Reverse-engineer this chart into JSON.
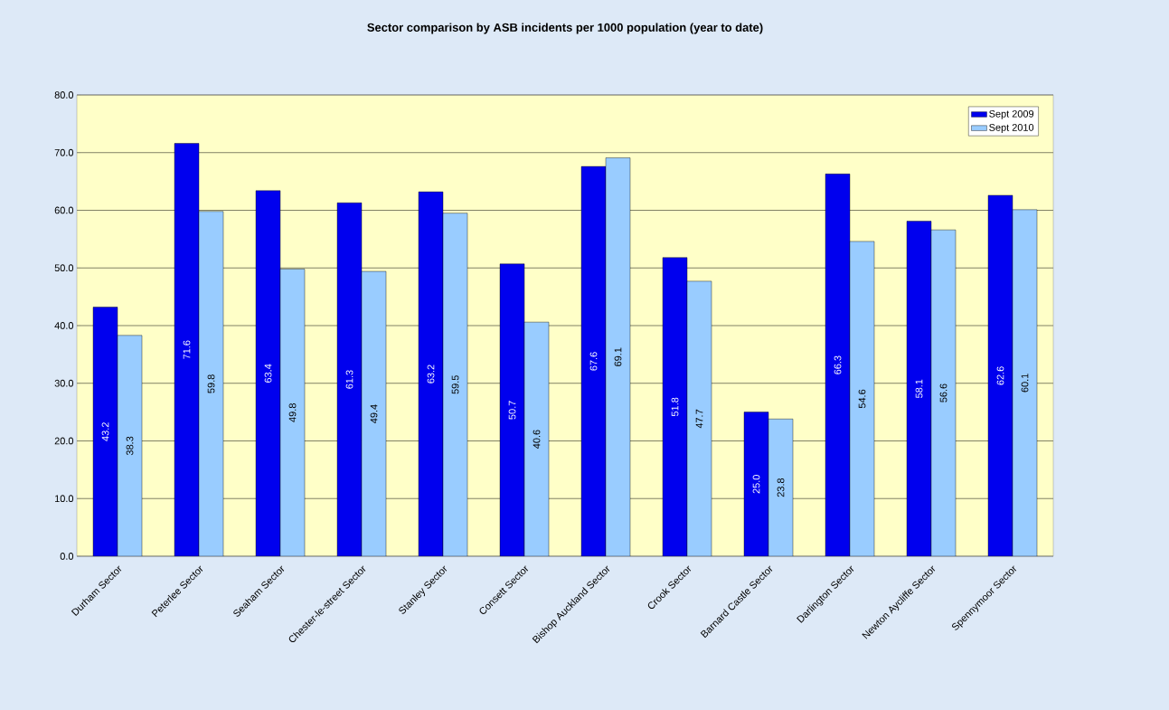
{
  "chart_data": {
    "type": "bar",
    "title": "Sector comparison by ASB incidents per 1000 population (year to date)",
    "categories": [
      "Durham Sector",
      "Peterlee Sector",
      "Seaham Sector",
      "Chester-le-street Sector",
      "Stanley Sector",
      "Consett Sector",
      "Bishop Auckland Sector",
      "Crook Sector",
      "Barnard Castle Sector",
      "Darlington Sector",
      "Newton Aycliffe Sector",
      "Spennymoor Sector"
    ],
    "series": [
      {
        "name": "Sept 2009",
        "color": "#0000ee",
        "values": [
          43.2,
          71.6,
          63.4,
          61.3,
          63.2,
          50.7,
          67.6,
          51.8,
          25.0,
          66.3,
          58.1,
          62.6
        ],
        "value_labels": [
          "43.2",
          "71.6",
          "63.4",
          "61.3",
          "63.2",
          "50.7",
          "67.6",
          "51.8",
          "25.0",
          "66.3",
          "58.1",
          "62.6"
        ]
      },
      {
        "name": "Sept 2010",
        "color": "#99ccff",
        "values": [
          38.3,
          59.8,
          49.8,
          49.4,
          59.5,
          40.6,
          69.1,
          47.7,
          23.8,
          54.6,
          56.6,
          60.1
        ],
        "value_labels": [
          "38.3",
          "59.8",
          "49.8",
          "49.4",
          "59.5",
          "40.6",
          "69.1",
          "47.7",
          "23.8",
          "54.6",
          "56.6",
          "60.1"
        ]
      }
    ],
    "ylim": [
      0,
      80
    ],
    "yticks": [
      {
        "value": 0,
        "label": "0.0"
      },
      {
        "value": 10,
        "label": "10.0"
      },
      {
        "value": 20,
        "label": "20.0"
      },
      {
        "value": 30,
        "label": "30.0"
      },
      {
        "value": 40,
        "label": "40.0"
      },
      {
        "value": 50,
        "label": "50.0"
      },
      {
        "value": 60,
        "label": "60.0"
      },
      {
        "value": 70,
        "label": "70.0"
      },
      {
        "value": 80,
        "label": "80.0"
      }
    ],
    "grid": "y",
    "legend": "top right"
  }
}
